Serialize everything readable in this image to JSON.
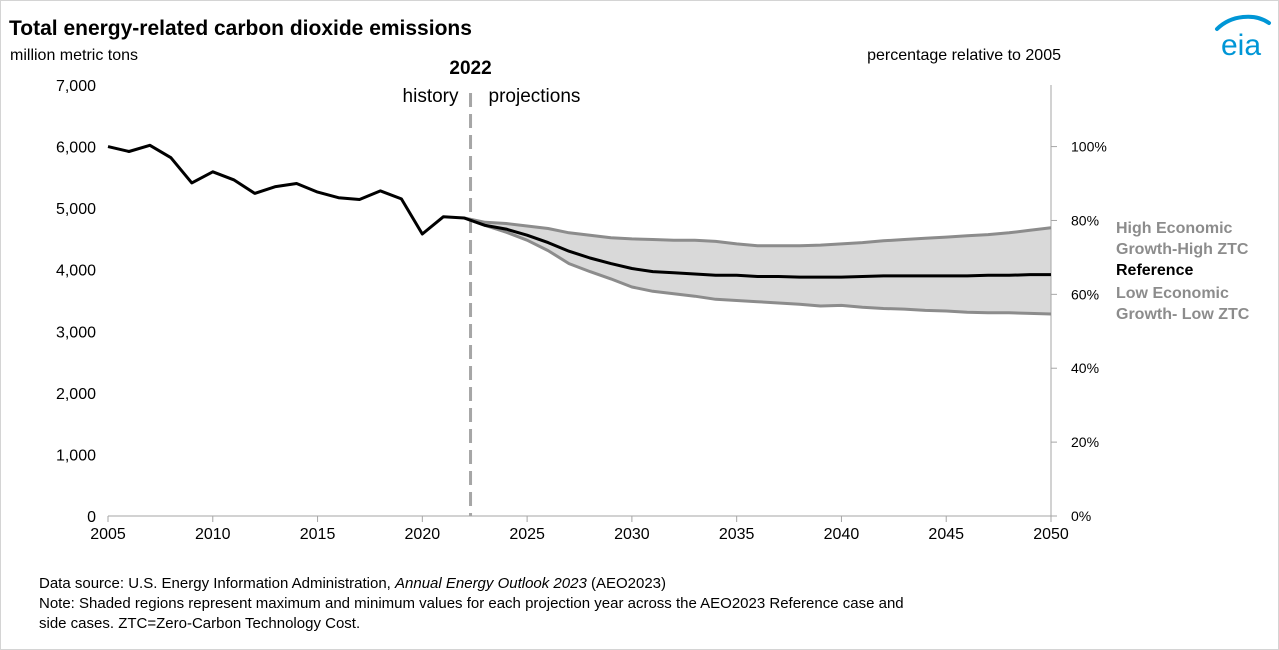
{
  "header": {
    "title": "Total energy-related carbon dioxide emissions",
    "y_unit": "million metric tons",
    "y2_unit": "percentage relative to 2005"
  },
  "logo": {
    "text": "eia",
    "color": "#0096d6"
  },
  "annotations": {
    "divider_year": "2022",
    "history": "history",
    "projections": "projections"
  },
  "legend": [
    {
      "label": "High Economic",
      "label2": "Growth-High ZTC",
      "color": "#8c8c8c"
    },
    {
      "label": "Reference",
      "label2": "",
      "color": "#000000"
    },
    {
      "label": "Low Economic",
      "label2": "Growth- Low ZTC",
      "color": "#8c8c8c"
    }
  ],
  "footer": {
    "source_prefix": "Data source: U.S. Energy Information Administration, ",
    "source_italic": "Annual Energy Outlook 2023",
    "source_suffix": " (AEO2023)",
    "note_line1": "Note: Shaded regions represent maximum and minimum values for each projection year across the AEO2023 Reference case and",
    "note_line2": "side cases. ZTC=Zero-Carbon Technology Cost."
  },
  "colors": {
    "reference": "#000000",
    "bounds": "#8c8c8c",
    "band_fill": "#d9d9d9",
    "axis": "#a6a6a6",
    "divider": "#a6a6a6"
  },
  "chart_data": {
    "type": "line",
    "xlim": [
      2005,
      2050
    ],
    "ylim": [
      0,
      7000
    ],
    "y2lim": [
      0,
      1.1667
    ],
    "x_ticks": [
      "2005",
      "2010",
      "2015",
      "2020",
      "2025",
      "2030",
      "2035",
      "2040",
      "2045",
      "2050"
    ],
    "y_ticks": [
      "0",
      "1,000",
      "2,000",
      "3,000",
      "4,000",
      "5,000",
      "6,000",
      "7,000"
    ],
    "y2_ticks": [
      "0%",
      "20%",
      "40%",
      "60%",
      "80%",
      "100%"
    ],
    "divider_x": 2022.3,
    "series": [
      {
        "name": "Reference",
        "x": [
          2005,
          2006,
          2007,
          2008,
          2009,
          2010,
          2011,
          2012,
          2013,
          2014,
          2015,
          2016,
          2017,
          2018,
          2019,
          2020,
          2021,
          2022,
          2023,
          2024,
          2025,
          2026,
          2027,
          2028,
          2029,
          2030,
          2031,
          2032,
          2033,
          2034,
          2035,
          2036,
          2037,
          2038,
          2039,
          2040,
          2041,
          2042,
          2043,
          2044,
          2045,
          2046,
          2047,
          2048,
          2049,
          2050
        ],
        "values": [
          6000,
          5920,
          6020,
          5820,
          5410,
          5590,
          5460,
          5240,
          5350,
          5400,
          5260,
          5170,
          5140,
          5280,
          5150,
          4580,
          4860,
          4840,
          4720,
          4660,
          4560,
          4440,
          4300,
          4190,
          4100,
          4020,
          3970,
          3950,
          3930,
          3910,
          3910,
          3890,
          3890,
          3880,
          3880,
          3880,
          3890,
          3900,
          3900,
          3900,
          3900,
          3900,
          3910,
          3910,
          3920,
          3920
        ]
      },
      {
        "name": "High Economic Growth-High ZTC",
        "x": [
          2022,
          2023,
          2024,
          2025,
          2026,
          2027,
          2028,
          2029,
          2030,
          2031,
          2032,
          2033,
          2034,
          2035,
          2036,
          2037,
          2038,
          2039,
          2040,
          2041,
          2042,
          2043,
          2044,
          2045,
          2046,
          2047,
          2048,
          2049,
          2050
        ],
        "values": [
          4840,
          4770,
          4750,
          4710,
          4670,
          4600,
          4560,
          4520,
          4500,
          4490,
          4480,
          4480,
          4460,
          4420,
          4390,
          4390,
          4390,
          4400,
          4420,
          4440,
          4470,
          4490,
          4510,
          4530,
          4550,
          4570,
          4600,
          4640,
          4680
        ]
      },
      {
        "name": "Low Economic Growth- Low ZTC",
        "x": [
          2022,
          2023,
          2024,
          2025,
          2026,
          2027,
          2028,
          2029,
          2030,
          2031,
          2032,
          2033,
          2034,
          2035,
          2036,
          2037,
          2038,
          2039,
          2040,
          2041,
          2042,
          2043,
          2044,
          2045,
          2046,
          2047,
          2048,
          2049,
          2050
        ],
        "values": [
          4840,
          4720,
          4610,
          4480,
          4310,
          4100,
          3970,
          3850,
          3720,
          3650,
          3610,
          3570,
          3520,
          3500,
          3480,
          3460,
          3440,
          3410,
          3420,
          3390,
          3370,
          3360,
          3340,
          3330,
          3310,
          3300,
          3300,
          3290,
          3280
        ]
      }
    ]
  }
}
